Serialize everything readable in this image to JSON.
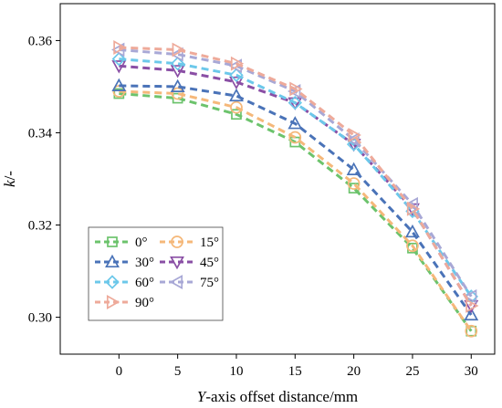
{
  "chart_data": {
    "type": "line",
    "xlabel_italic": "Y",
    "xlabel_rest": "-axis offset distance/mm",
    "ylabel_italic": "k",
    "ylabel_rest": "/-",
    "x": [
      0,
      5,
      10,
      15,
      20,
      25,
      30
    ],
    "xlim": [
      -5,
      32
    ],
    "ylim": [
      0.292,
      0.368
    ],
    "x_ticks": [
      "0",
      "5",
      "10",
      "15",
      "20",
      "25",
      "30"
    ],
    "x_tick_values": [
      0,
      5,
      10,
      15,
      20,
      25,
      30
    ],
    "y_ticks": [
      "0.30",
      "0.32",
      "0.34",
      "0.36"
    ],
    "y_tick_values": [
      0.3,
      0.32,
      0.34,
      0.36
    ],
    "grid": false,
    "legend_position": "bottom-left",
    "series": [
      {
        "name": "0°",
        "color": "#6cc36c",
        "marker": "square",
        "values": [
          0.3485,
          0.3475,
          0.344,
          0.338,
          0.328,
          0.315,
          0.297
        ]
      },
      {
        "name": "15°",
        "color": "#f5b87a",
        "marker": "circle",
        "values": [
          0.349,
          0.3485,
          0.3455,
          0.339,
          0.329,
          0.3155,
          0.297
        ]
      },
      {
        "name": "30°",
        "color": "#4a73b8",
        "marker": "triangle-up",
        "values": [
          0.3502,
          0.35,
          0.348,
          0.342,
          0.332,
          0.3185,
          0.3005
        ]
      },
      {
        "name": "45°",
        "color": "#8a4fa5",
        "marker": "triangle-down",
        "values": [
          0.3545,
          0.3535,
          0.351,
          0.3465,
          0.3375,
          0.3235,
          0.3025
        ]
      },
      {
        "name": "60°",
        "color": "#6cc8ea",
        "marker": "diamond",
        "values": [
          0.356,
          0.355,
          0.3525,
          0.3465,
          0.3375,
          0.323,
          0.3045
        ]
      },
      {
        "name": "75°",
        "color": "#a8a8d6",
        "marker": "triangle-left",
        "values": [
          0.358,
          0.357,
          0.3545,
          0.349,
          0.3385,
          0.3245,
          0.3045
        ]
      },
      {
        "name": "90°",
        "color": "#eeaa9a",
        "marker": "triangle-right",
        "values": [
          0.3585,
          0.358,
          0.355,
          0.3495,
          0.3395,
          0.3235,
          0.3025
        ]
      }
    ]
  }
}
